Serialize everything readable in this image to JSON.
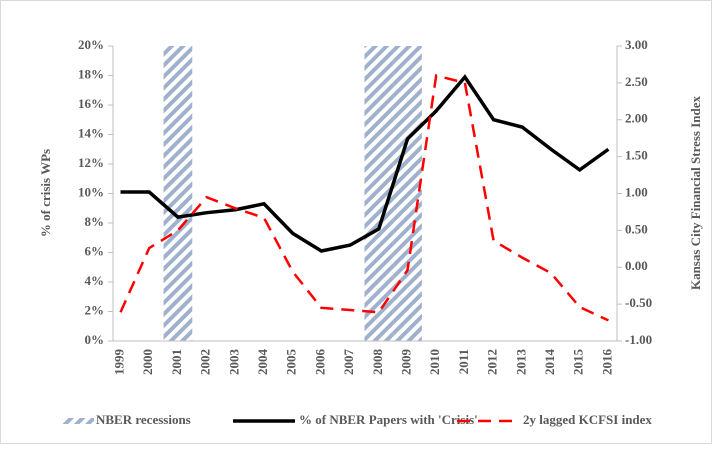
{
  "chart_data": {
    "type": "combo",
    "ylabel": "% of crisis WPs",
    "y2label": "Kansas City Financial Stress Index",
    "categories": [
      "1999",
      "2000",
      "2001",
      "2002",
      "2003",
      "2004",
      "2005",
      "2006",
      "2007",
      "2008",
      "2009",
      "2010",
      "2011",
      "2012",
      "2013",
      "2014",
      "2015",
      "2016"
    ],
    "ylim": [
      0,
      20
    ],
    "yticks": [
      {
        "value": 0,
        "label": "0%"
      },
      {
        "value": 2,
        "label": "2%"
      },
      {
        "value": 4,
        "label": "4%"
      },
      {
        "value": 6,
        "label": "6%"
      },
      {
        "value": 8,
        "label": "8%"
      },
      {
        "value": 10,
        "label": "10%"
      },
      {
        "value": 12,
        "label": "12%"
      },
      {
        "value": 14,
        "label": "14%"
      },
      {
        "value": 16,
        "label": "16%"
      },
      {
        "value": 18,
        "label": "18%"
      },
      {
        "value": 20,
        "label": "20%"
      }
    ],
    "y2lim": [
      -1,
      3
    ],
    "y2ticks": [
      {
        "value": -1,
        "label": "-1.00"
      },
      {
        "value": -0.5,
        "label": "-0.50"
      },
      {
        "value": 0,
        "label": "0.00"
      },
      {
        "value": 0.5,
        "label": "0.50"
      },
      {
        "value": 1,
        "label": "1.00"
      },
      {
        "value": 1.5,
        "label": "1.50"
      },
      {
        "value": 2,
        "label": "2.00"
      },
      {
        "value": 2.5,
        "label": "2.50"
      },
      {
        "value": 3,
        "label": "3.00"
      }
    ],
    "legend": "bottom",
    "series": [
      {
        "name": "NBER recessions",
        "type": "bar",
        "color": "#9fb1cc",
        "hatch": true,
        "values": [
          null,
          null,
          20,
          null,
          null,
          null,
          null,
          null,
          null,
          20,
          20,
          null,
          null,
          null,
          null,
          null,
          null,
          null
        ]
      },
      {
        "name": "% of NBER Papers with 'Crisis'",
        "type": "line",
        "color": "#000000",
        "values": [
          10.1,
          10.1,
          8.4,
          8.7,
          8.9,
          9.3,
          7.3,
          6.1,
          6.5,
          7.6,
          13.7,
          15.6,
          17.9,
          15.0,
          14.5,
          13.0,
          11.6,
          13.0
        ]
      },
      {
        "name": "2y lagged KCFSI index",
        "type": "line",
        "color": "#ff0000",
        "dashed": true,
        "axis": "y2",
        "values": [
          -0.61,
          0.26,
          0.5,
          0.95,
          0.8,
          0.67,
          -0.06,
          -0.55,
          -0.58,
          -0.61,
          -0.04,
          2.6,
          2.5,
          0.36,
          0.13,
          -0.08,
          -0.54,
          -0.72
        ]
      }
    ]
  }
}
